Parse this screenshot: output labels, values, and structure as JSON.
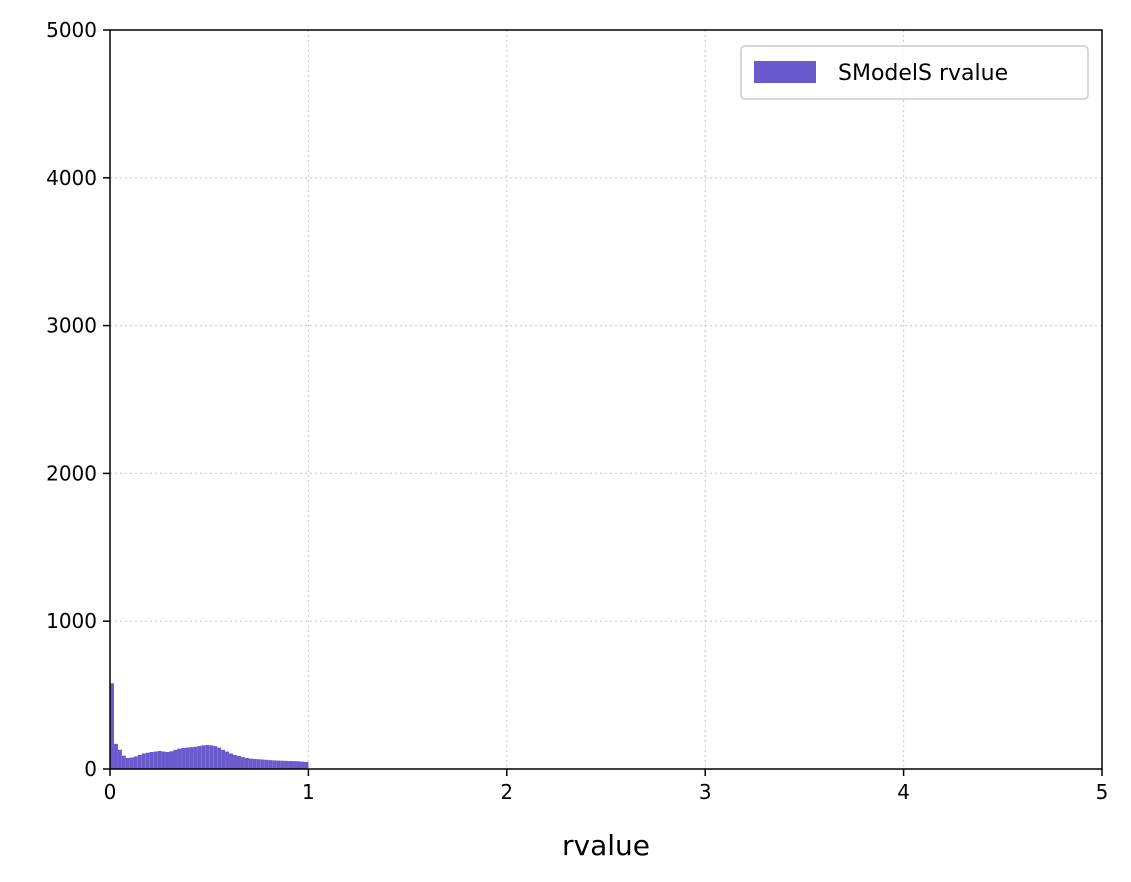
{
  "chart_data": {
    "type": "bar",
    "title": "",
    "xlabel": "rvalue",
    "ylabel": "",
    "xlim": [
      0,
      5
    ],
    "ylim": [
      0,
      5000
    ],
    "xticks": [
      0,
      1,
      2,
      3,
      4,
      5
    ],
    "yticks": [
      0,
      1000,
      2000,
      3000,
      4000,
      5000
    ],
    "xtick_labels": [
      "0",
      "1",
      "2",
      "3",
      "4",
      "5"
    ],
    "ytick_labels": [
      "0",
      "1000",
      "2000",
      "3000",
      "4000",
      "5000"
    ],
    "grid": true,
    "legend_position": "top-right",
    "series": [
      {
        "name": "SModelS rvalue",
        "color": "#6a5acd",
        "bin_width": 0.02,
        "x": [
          0.0,
          0.02,
          0.04,
          0.06,
          0.08,
          0.1,
          0.12,
          0.14,
          0.16,
          0.18,
          0.2,
          0.22,
          0.24,
          0.26,
          0.28,
          0.3,
          0.32,
          0.34,
          0.36,
          0.38,
          0.4,
          0.42,
          0.44,
          0.46,
          0.48,
          0.5,
          0.52,
          0.54,
          0.56,
          0.58,
          0.6,
          0.62,
          0.64,
          0.66,
          0.68,
          0.7,
          0.72,
          0.74,
          0.76,
          0.78,
          0.8,
          0.82,
          0.84,
          0.86,
          0.88,
          0.9,
          0.92,
          0.94,
          0.96,
          0.98
        ],
        "values": [
          580,
          170,
          130,
          90,
          75,
          78,
          85,
          95,
          105,
          110,
          115,
          118,
          122,
          118,
          115,
          120,
          130,
          138,
          142,
          145,
          148,
          150,
          155,
          160,
          162,
          160,
          155,
          145,
          130,
          118,
          105,
          95,
          88,
          80,
          75,
          70,
          68,
          66,
          64,
          62,
          60,
          58,
          57,
          56,
          55,
          54,
          53,
          52,
          50,
          48
        ]
      }
    ]
  }
}
